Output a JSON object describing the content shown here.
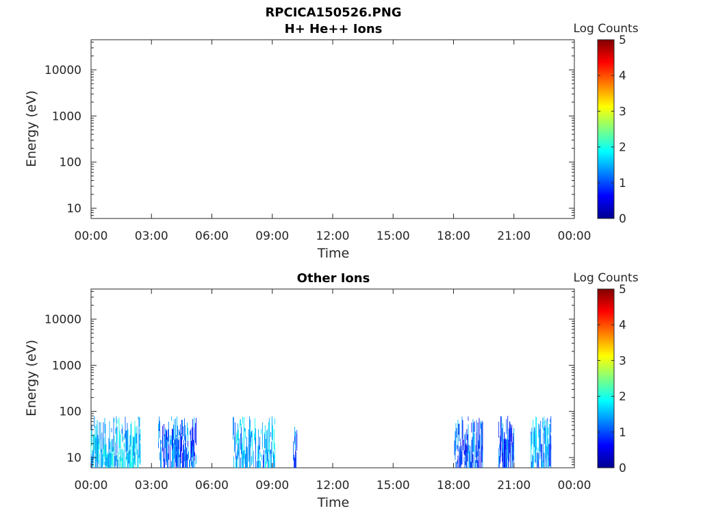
{
  "figure": {
    "title_line1": "RPCICA150526.PNG"
  },
  "panels": [
    {
      "title": "H+ He++ Ions",
      "xlabel": "Time",
      "ylabel": "Energy (eV)",
      "x_ticks": [
        "00:00",
        "03:00",
        "06:00",
        "09:00",
        "12:00",
        "15:00",
        "18:00",
        "21:00",
        "00:00"
      ],
      "y_ticks": [
        "10",
        "100",
        "1000",
        "10000"
      ],
      "colorbar_label": "Log Counts",
      "colorbar_ticks": [
        "0",
        "1",
        "2",
        "3",
        "4",
        "5"
      ]
    },
    {
      "title": "Other Ions",
      "xlabel": "Time",
      "ylabel": "Energy (eV)",
      "x_ticks": [
        "00:00",
        "03:00",
        "06:00",
        "09:00",
        "12:00",
        "15:00",
        "18:00",
        "21:00",
        "00:00"
      ],
      "y_ticks": [
        "10",
        "100",
        "1000",
        "10000"
      ],
      "colorbar_label": "Log Counts",
      "colorbar_ticks": [
        "0",
        "1",
        "2",
        "3",
        "4",
        "5"
      ]
    }
  ],
  "chart_data": [
    {
      "type": "heatmap",
      "title": "H+ He++ Ions",
      "xlabel": "Time",
      "ylabel": "Energy (eV)",
      "x_range_hours": [
        0,
        24
      ],
      "y_scale": "log",
      "y_range": [
        6,
        45000
      ],
      "colorbar": {
        "label": "Log Counts",
        "range": [
          0,
          5
        ],
        "colormap": "jet"
      },
      "active_intervals": []
    },
    {
      "type": "heatmap",
      "title": "Other Ions",
      "xlabel": "Time",
      "ylabel": "Energy (eV)",
      "x_range_hours": [
        0,
        24
      ],
      "y_scale": "log",
      "y_range": [
        6,
        45000
      ],
      "colorbar": {
        "label": "Log Counts",
        "range": [
          0,
          5
        ],
        "colormap": "jet"
      },
      "energy_range_of_signal_eV": [
        6,
        80
      ],
      "active_intervals": [
        {
          "start_hour": 0.0,
          "end_hour": 2.45,
          "typical_log_counts": 1.6
        },
        {
          "start_hour": 3.35,
          "end_hour": 5.25,
          "typical_log_counts": 1.1
        },
        {
          "start_hour": 7.05,
          "end_hour": 9.15,
          "typical_log_counts": 1.5
        },
        {
          "start_hour": 10.05,
          "end_hour": 10.25,
          "typical_log_counts": 1.0
        },
        {
          "start_hour": 18.05,
          "end_hour": 19.45,
          "typical_log_counts": 1.0
        },
        {
          "start_hour": 20.25,
          "end_hour": 21.0,
          "typical_log_counts": 1.0
        },
        {
          "start_hour": 21.85,
          "end_hour": 22.85,
          "typical_log_counts": 1.3
        }
      ]
    }
  ]
}
